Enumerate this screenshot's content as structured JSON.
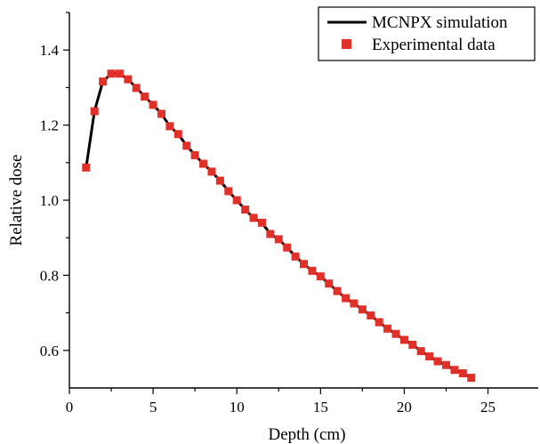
{
  "chart_data": {
    "type": "line+scatter",
    "xlabel": "Depth (cm)",
    "ylabel": "Relative dose",
    "xlim": [
      0,
      28
    ],
    "ylim": [
      0.5,
      1.5
    ],
    "x_ticks": [
      0,
      5,
      10,
      15,
      20,
      25
    ],
    "y_ticks": [
      0.6,
      0.8,
      1.0,
      1.2,
      1.4
    ],
    "x_tick_labels": [
      "0",
      "5",
      "10",
      "15",
      "20",
      "25"
    ],
    "y_tick_labels": [
      "0.6",
      "0.8",
      "1.0",
      "1.2",
      "1.4"
    ],
    "grid": false,
    "legend_position": "top-right",
    "series": [
      {
        "name": "MCNPX simulation",
        "kind": "line",
        "color": "#000000",
        "x": [
          1.0,
          1.5,
          2.0,
          2.5,
          3.0,
          3.5,
          4.0,
          4.5,
          5.0,
          5.5,
          6.0,
          6.5,
          7.0,
          7.5,
          8.0,
          8.5,
          9.0,
          9.5,
          10.0,
          10.5,
          11.0,
          11.5,
          12.0,
          12.5,
          13.0,
          13.5,
          14.0,
          14.5,
          15.0,
          15.5,
          16.0,
          16.5,
          17.0,
          17.5,
          18.0,
          18.5,
          19.0,
          19.5,
          20.0,
          20.5,
          21.0,
          21.5,
          22.0,
          22.5,
          23.0,
          23.5,
          24.0
        ],
        "y": [
          1.087,
          1.237,
          1.316,
          1.337,
          1.337,
          1.322,
          1.299,
          1.276,
          1.254,
          1.23,
          1.197,
          1.176,
          1.145,
          1.12,
          1.097,
          1.076,
          1.052,
          1.024,
          1.0,
          0.975,
          0.953,
          0.94,
          0.91,
          0.896,
          0.874,
          0.85,
          0.83,
          0.812,
          0.797,
          0.778,
          0.758,
          0.739,
          0.725,
          0.709,
          0.693,
          0.675,
          0.658,
          0.644,
          0.628,
          0.615,
          0.598,
          0.584,
          0.571,
          0.561,
          0.548,
          0.539,
          0.527
        ]
      },
      {
        "name": "Experimental data",
        "kind": "scatter",
        "color": "#e0302a",
        "marker": "square",
        "x": [
          1.0,
          1.5,
          2.0,
          2.5,
          3.0,
          3.5,
          4.0,
          4.5,
          5.0,
          5.5,
          6.0,
          6.5,
          7.0,
          7.5,
          8.0,
          8.5,
          9.0,
          9.5,
          10.0,
          10.5,
          11.0,
          11.5,
          12.0,
          12.5,
          13.0,
          13.5,
          14.0,
          14.5,
          15.0,
          15.5,
          16.0,
          16.5,
          17.0,
          17.5,
          18.0,
          18.5,
          19.0,
          19.5,
          20.0,
          20.5,
          21.0,
          21.5,
          22.0,
          22.5,
          23.0,
          23.5,
          24.0
        ],
        "y": [
          1.087,
          1.237,
          1.316,
          1.337,
          1.337,
          1.322,
          1.299,
          1.276,
          1.254,
          1.23,
          1.197,
          1.176,
          1.145,
          1.12,
          1.097,
          1.076,
          1.052,
          1.024,
          1.0,
          0.975,
          0.953,
          0.94,
          0.91,
          0.896,
          0.874,
          0.85,
          0.83,
          0.812,
          0.797,
          0.778,
          0.758,
          0.739,
          0.725,
          0.709,
          0.693,
          0.675,
          0.658,
          0.644,
          0.628,
          0.615,
          0.598,
          0.584,
          0.571,
          0.561,
          0.548,
          0.539,
          0.527
        ]
      }
    ]
  }
}
